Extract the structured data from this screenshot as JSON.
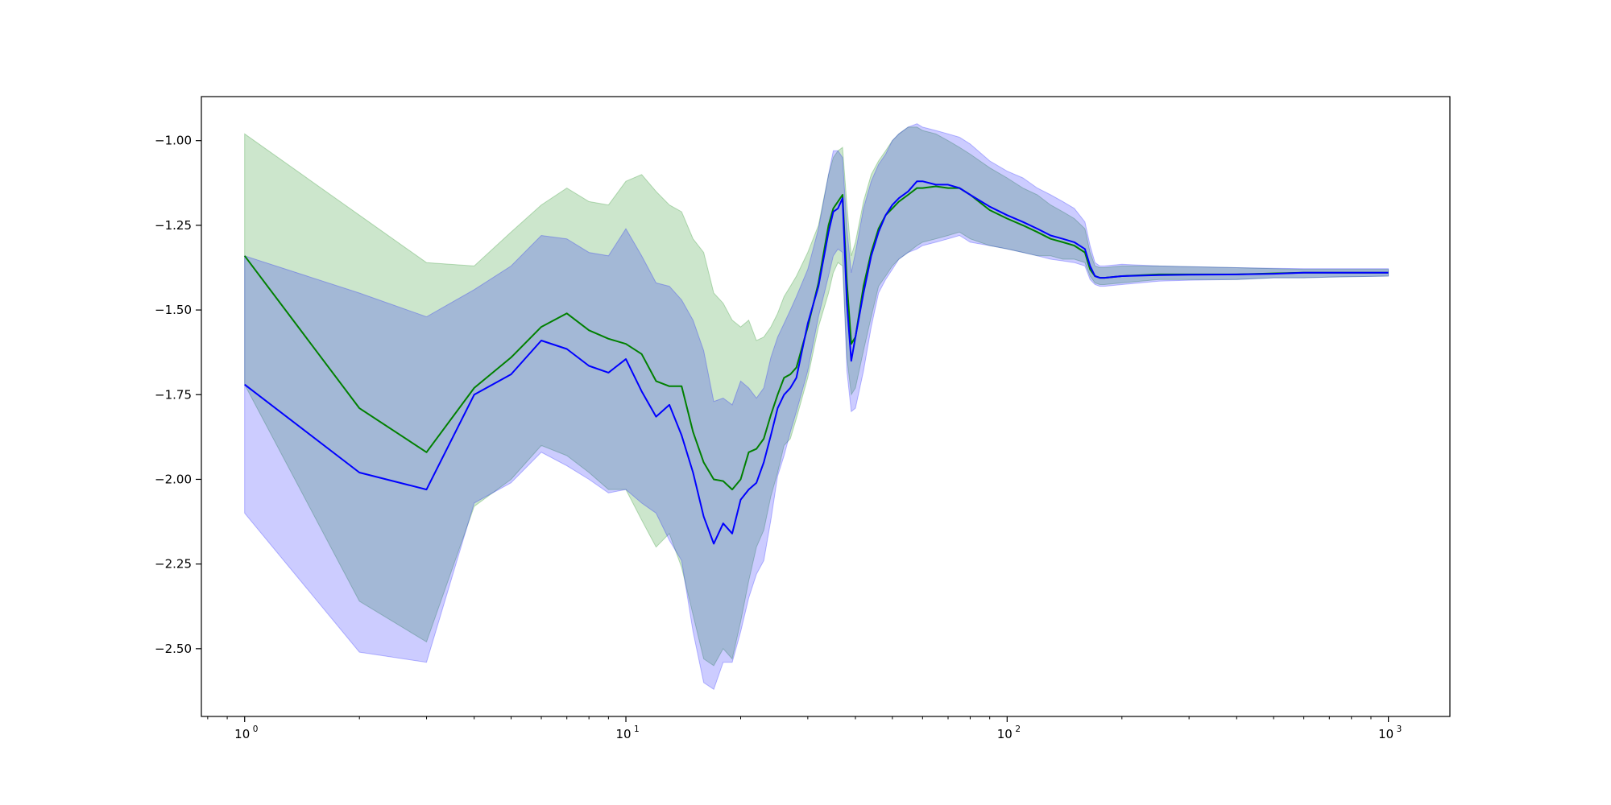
{
  "chart_data": {
    "type": "line",
    "title": "",
    "xlabel": "",
    "ylabel": "",
    "xscale": "log",
    "xlim": [
      0.77,
      1450
    ],
    "ylim": [
      -2.7,
      -0.87
    ],
    "grid": false,
    "legend": "none",
    "x_ticks": [
      {
        "value": 1,
        "label": "10",
        "exp": "0"
      },
      {
        "value": 10,
        "label": "10",
        "exp": "1"
      },
      {
        "value": 100,
        "label": "10",
        "exp": "2"
      },
      {
        "value": 1000,
        "label": "10",
        "exp": "3"
      }
    ],
    "y_ticks": [
      {
        "value": -1.0,
        "label": "−1.00"
      },
      {
        "value": -1.25,
        "label": "−1.25"
      },
      {
        "value": -1.5,
        "label": "−1.50"
      },
      {
        "value": -1.75,
        "label": "−1.75"
      },
      {
        "value": -2.0,
        "label": "−2.00"
      },
      {
        "value": -2.25,
        "label": "−2.25"
      },
      {
        "value": -2.5,
        "label": "−2.50"
      }
    ],
    "series": [
      {
        "color": "#008000",
        "band_color": "#008000",
        "band_opacity": 0.2,
        "x": [
          1,
          2,
          3,
          4,
          5,
          6,
          7,
          8,
          9,
          10,
          11,
          12,
          13,
          14,
          15,
          16,
          17,
          18,
          19,
          20,
          21,
          22,
          23,
          24,
          25,
          26,
          27,
          28,
          30,
          32,
          34,
          35,
          36,
          37,
          38,
          39,
          40,
          42,
          44,
          46,
          48,
          50,
          52,
          55,
          58,
          60,
          65,
          70,
          75,
          80,
          90,
          100,
          110,
          120,
          130,
          140,
          150,
          160,
          165,
          170,
          175,
          180,
          200,
          250,
          300,
          400,
          500,
          600,
          700,
          800,
          900,
          1000
        ],
        "mean": [
          -1.34,
          -1.79,
          -1.92,
          -1.73,
          -1.64,
          -1.55,
          -1.51,
          -1.56,
          -1.585,
          -1.6,
          -1.63,
          -1.71,
          -1.725,
          -1.725,
          -1.86,
          -1.95,
          -2.0,
          -2.005,
          -2.03,
          -2.0,
          -1.92,
          -1.91,
          -1.88,
          -1.81,
          -1.75,
          -1.7,
          -1.69,
          -1.67,
          -1.55,
          -1.42,
          -1.25,
          -1.2,
          -1.18,
          -1.16,
          -1.42,
          -1.6,
          -1.58,
          -1.43,
          -1.33,
          -1.26,
          -1.22,
          -1.2,
          -1.18,
          -1.16,
          -1.14,
          -1.14,
          -1.135,
          -1.14,
          -1.14,
          -1.16,
          -1.205,
          -1.23,
          -1.25,
          -1.27,
          -1.29,
          -1.3,
          -1.31,
          -1.33,
          -1.38,
          -1.4,
          -1.405,
          -1.405,
          -1.4,
          -1.395,
          -1.395,
          -1.395,
          -1.392,
          -1.39,
          -1.39,
          -1.39,
          -1.39,
          -1.39
        ],
        "lower": [
          -1.72,
          -2.36,
          -2.48,
          -2.08,
          -2.0,
          -1.9,
          -1.93,
          -1.98,
          -2.03,
          -2.03,
          -2.12,
          -2.2,
          -2.16,
          -2.26,
          -2.4,
          -2.53,
          -2.55,
          -2.5,
          -2.53,
          -2.42,
          -2.3,
          -2.2,
          -2.15,
          -2.05,
          -1.98,
          -1.9,
          -1.88,
          -1.82,
          -1.7,
          -1.55,
          -1.45,
          -1.39,
          -1.36,
          -1.37,
          -1.64,
          -1.75,
          -1.73,
          -1.62,
          -1.52,
          -1.43,
          -1.4,
          -1.37,
          -1.35,
          -1.33,
          -1.31,
          -1.3,
          -1.29,
          -1.28,
          -1.27,
          -1.29,
          -1.31,
          -1.32,
          -1.33,
          -1.34,
          -1.34,
          -1.35,
          -1.35,
          -1.36,
          -1.4,
          -1.42,
          -1.425,
          -1.425,
          -1.42,
          -1.41,
          -1.41,
          -1.41,
          -1.405,
          -1.405,
          -1.403,
          -1.402,
          -1.401,
          -1.4
        ],
        "upper": [
          -0.98,
          -1.22,
          -1.36,
          -1.37,
          -1.27,
          -1.19,
          -1.14,
          -1.18,
          -1.19,
          -1.12,
          -1.1,
          -1.15,
          -1.19,
          -1.21,
          -1.29,
          -1.33,
          -1.45,
          -1.48,
          -1.53,
          -1.55,
          -1.53,
          -1.59,
          -1.58,
          -1.55,
          -1.51,
          -1.46,
          -1.43,
          -1.4,
          -1.33,
          -1.25,
          -1.1,
          -1.05,
          -1.03,
          -1.02,
          -1.19,
          -1.34,
          -1.3,
          -1.18,
          -1.1,
          -1.06,
          -1.03,
          -1.0,
          -0.98,
          -0.96,
          -0.96,
          -0.97,
          -0.98,
          -1.0,
          -1.02,
          -1.04,
          -1.08,
          -1.11,
          -1.14,
          -1.16,
          -1.19,
          -1.21,
          -1.23,
          -1.26,
          -1.33,
          -1.37,
          -1.375,
          -1.375,
          -1.37,
          -1.37,
          -1.372,
          -1.375,
          -1.378,
          -1.38,
          -1.38,
          -1.38,
          -1.38,
          -1.38
        ]
      },
      {
        "color": "#0000ff",
        "band_color": "#0000ff",
        "band_opacity": 0.2,
        "x": [
          1,
          2,
          3,
          4,
          5,
          6,
          7,
          8,
          9,
          10,
          11,
          12,
          13,
          14,
          15,
          16,
          17,
          18,
          19,
          20,
          21,
          22,
          23,
          24,
          25,
          26,
          27,
          28,
          30,
          32,
          34,
          35,
          36,
          37,
          38,
          39,
          40,
          42,
          44,
          46,
          48,
          50,
          52,
          55,
          58,
          60,
          65,
          70,
          75,
          80,
          90,
          100,
          110,
          120,
          130,
          140,
          150,
          160,
          165,
          170,
          175,
          180,
          200,
          250,
          300,
          400,
          500,
          600,
          700,
          800,
          900,
          1000
        ],
        "mean": [
          -1.72,
          -1.98,
          -2.03,
          -1.75,
          -1.69,
          -1.59,
          -1.615,
          -1.665,
          -1.685,
          -1.645,
          -1.74,
          -1.815,
          -1.78,
          -1.87,
          -1.98,
          -2.11,
          -2.19,
          -2.13,
          -2.16,
          -2.06,
          -2.03,
          -2.01,
          -1.95,
          -1.87,
          -1.79,
          -1.75,
          -1.73,
          -1.7,
          -1.54,
          -1.43,
          -1.27,
          -1.21,
          -1.2,
          -1.17,
          -1.48,
          -1.65,
          -1.58,
          -1.45,
          -1.34,
          -1.27,
          -1.22,
          -1.19,
          -1.17,
          -1.15,
          -1.12,
          -1.12,
          -1.13,
          -1.13,
          -1.14,
          -1.16,
          -1.195,
          -1.22,
          -1.24,
          -1.26,
          -1.28,
          -1.29,
          -1.3,
          -1.32,
          -1.37,
          -1.4,
          -1.405,
          -1.405,
          -1.4,
          -1.397,
          -1.396,
          -1.395,
          -1.393,
          -1.39,
          -1.39,
          -1.39,
          -1.39,
          -1.39
        ],
        "lower": [
          -2.1,
          -2.51,
          -2.54,
          -2.07,
          -2.01,
          -1.92,
          -1.96,
          -2.0,
          -2.04,
          -2.03,
          -2.07,
          -2.1,
          -2.18,
          -2.24,
          -2.45,
          -2.6,
          -2.62,
          -2.54,
          -2.54,
          -2.45,
          -2.35,
          -2.28,
          -2.24,
          -2.12,
          -1.99,
          -1.93,
          -1.86,
          -1.8,
          -1.68,
          -1.52,
          -1.4,
          -1.34,
          -1.32,
          -1.33,
          -1.68,
          -1.8,
          -1.79,
          -1.68,
          -1.55,
          -1.45,
          -1.41,
          -1.38,
          -1.35,
          -1.33,
          -1.32,
          -1.31,
          -1.3,
          -1.29,
          -1.28,
          -1.3,
          -1.31,
          -1.32,
          -1.33,
          -1.34,
          -1.35,
          -1.355,
          -1.36,
          -1.37,
          -1.41,
          -1.425,
          -1.43,
          -1.43,
          -1.425,
          -1.415,
          -1.412,
          -1.41,
          -1.405,
          -1.405,
          -1.403,
          -1.402,
          -1.401,
          -1.4
        ],
        "upper": [
          -1.34,
          -1.45,
          -1.52,
          -1.44,
          -1.37,
          -1.28,
          -1.29,
          -1.33,
          -1.34,
          -1.26,
          -1.34,
          -1.42,
          -1.43,
          -1.47,
          -1.53,
          -1.62,
          -1.77,
          -1.76,
          -1.78,
          -1.71,
          -1.73,
          -1.76,
          -1.73,
          -1.64,
          -1.58,
          -1.54,
          -1.5,
          -1.46,
          -1.38,
          -1.26,
          -1.1,
          -1.03,
          -1.03,
          -1.05,
          -1.26,
          -1.39,
          -1.33,
          -1.2,
          -1.12,
          -1.07,
          -1.04,
          -1.0,
          -0.98,
          -0.96,
          -0.95,
          -0.96,
          -0.97,
          -0.98,
          -0.99,
          -1.01,
          -1.06,
          -1.09,
          -1.11,
          -1.14,
          -1.16,
          -1.18,
          -1.2,
          -1.24,
          -1.31,
          -1.36,
          -1.37,
          -1.37,
          -1.365,
          -1.37,
          -1.372,
          -1.375,
          -1.377,
          -1.378,
          -1.378,
          -1.378,
          -1.378,
          -1.378
        ]
      }
    ]
  }
}
